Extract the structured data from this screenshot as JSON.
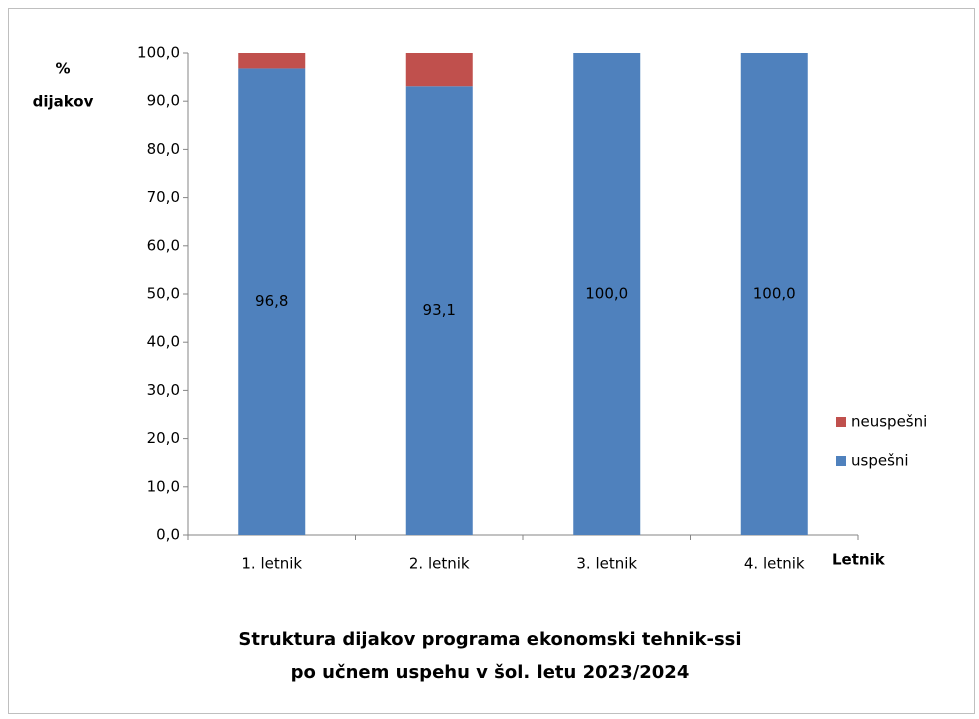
{
  "chart_data": {
    "type": "stacked_bar",
    "title": [
      "Struktura dijakov programa ekonomski tehnik-ssi",
      "po učnem uspehu v šol. letu 2023/2024"
    ],
    "y_label": [
      "%",
      "dijakov"
    ],
    "x_label": "Letnik",
    "categories": [
      "1. letnik",
      "2. letnik",
      "3. letnik",
      "4. letnik"
    ],
    "series": [
      {
        "name": "uspešni",
        "color": "#4f81bd",
        "values": [
          96.8,
          93.1,
          100.0,
          100.0
        ],
        "value_labels": [
          "96,8",
          "93,1",
          "100,0",
          "100,0"
        ]
      },
      {
        "name": "neuspešni",
        "color": "#c0504d",
        "values": [
          3.2,
          6.9,
          0,
          0
        ]
      }
    ],
    "ylim": [
      0,
      100
    ],
    "yticks": [
      {
        "value": 0,
        "label": "0,0"
      },
      {
        "value": 10,
        "label": "10,0"
      },
      {
        "value": 20,
        "label": "20,0"
      },
      {
        "value": 30,
        "label": "30,0"
      },
      {
        "value": 40,
        "label": "40,0"
      },
      {
        "value": 50,
        "label": "50,0"
      },
      {
        "value": 60,
        "label": "60,0"
      },
      {
        "value": 70,
        "label": "70,0"
      },
      {
        "value": 80,
        "label": "80,0"
      },
      {
        "value": 90,
        "label": "90,0"
      },
      {
        "value": 100,
        "label": "100,0"
      }
    ],
    "grid": false,
    "legend": "right"
  }
}
